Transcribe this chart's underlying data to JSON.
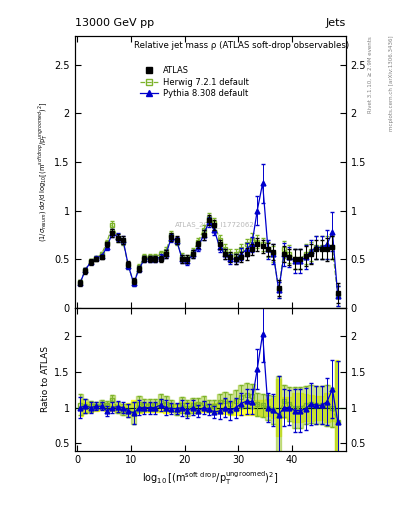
{
  "title": "13000 GeV pp",
  "title_right": "Jets",
  "plot_title": "Relative jet mass ρ (ATLAS soft-drop observables)",
  "ylabel_main": "(1/σ$_{resum}$) dσ/d log$_{10}$[(m$^{soft drop}$/p$_T^{ungroomed}$)$^2$]",
  "ylabel_ratio": "Ratio to ATLAS",
  "right_label": "Rivet 3.1.10, ≥ 2.9M events",
  "right_label2": "mcplots.cern.ch [arXiv:1306.3436]",
  "watermark": "ATLAS_2019_I1772062",
  "atlas_color": "#000000",
  "herwig_color": "#7db32b",
  "pythia_color": "#0000cc",
  "xlim": [
    -0.5,
    50
  ],
  "ylim_main": [
    0,
    2.8
  ],
  "ylim_ratio": [
    0.4,
    2.4
  ],
  "xdata": [
    0.5,
    1.5,
    2.5,
    3.5,
    4.5,
    5.5,
    6.5,
    7.5,
    8.5,
    9.5,
    10.5,
    11.5,
    12.5,
    13.5,
    14.5,
    15.5,
    16.5,
    17.5,
    18.5,
    19.5,
    20.5,
    21.5,
    22.5,
    23.5,
    24.5,
    25.5,
    26.5,
    27.5,
    28.5,
    29.5,
    30.5,
    31.5,
    32.5,
    33.5,
    34.5,
    35.5,
    36.5,
    37.5,
    38.5,
    39.5,
    40.5,
    41.5,
    42.5,
    43.5,
    44.5,
    45.5,
    46.5,
    47.5,
    48.5
  ],
  "atlas_y": [
    0.25,
    0.38,
    0.47,
    0.5,
    0.52,
    0.65,
    0.77,
    0.72,
    0.7,
    0.45,
    0.27,
    0.4,
    0.5,
    0.5,
    0.5,
    0.5,
    0.55,
    0.73,
    0.7,
    0.5,
    0.5,
    0.55,
    0.65,
    0.75,
    0.9,
    0.85,
    0.65,
    0.55,
    0.52,
    0.5,
    0.52,
    0.55,
    0.6,
    0.65,
    0.63,
    0.6,
    0.57,
    0.2,
    0.55,
    0.52,
    0.5,
    0.5,
    0.53,
    0.55,
    0.6,
    0.6,
    0.6,
    0.62,
    0.15
  ],
  "atlas_yerr": [
    0.03,
    0.03,
    0.03,
    0.02,
    0.02,
    0.03,
    0.04,
    0.04,
    0.04,
    0.03,
    0.03,
    0.03,
    0.03,
    0.03,
    0.03,
    0.03,
    0.04,
    0.04,
    0.04,
    0.04,
    0.04,
    0.04,
    0.04,
    0.05,
    0.05,
    0.05,
    0.05,
    0.05,
    0.05,
    0.05,
    0.05,
    0.06,
    0.06,
    0.07,
    0.07,
    0.07,
    0.08,
    0.08,
    0.08,
    0.08,
    0.1,
    0.1,
    0.1,
    0.1,
    0.1,
    0.1,
    0.12,
    0.12,
    0.1
  ],
  "herwig_y": [
    0.26,
    0.39,
    0.48,
    0.51,
    0.55,
    0.67,
    0.85,
    0.72,
    0.68,
    0.43,
    0.25,
    0.42,
    0.52,
    0.52,
    0.52,
    0.55,
    0.58,
    0.75,
    0.68,
    0.52,
    0.5,
    0.57,
    0.68,
    0.8,
    0.92,
    0.87,
    0.7,
    0.6,
    0.55,
    0.55,
    0.6,
    0.65,
    0.7,
    0.68,
    0.65,
    0.6,
    0.55,
    0.18,
    0.6,
    0.55,
    0.5,
    0.5,
    0.55,
    0.58,
    0.62,
    0.62,
    0.62,
    0.62,
    0.12
  ],
  "herwig_yerr": [
    0.02,
    0.02,
    0.02,
    0.02,
    0.02,
    0.03,
    0.04,
    0.04,
    0.04,
    0.03,
    0.03,
    0.03,
    0.03,
    0.03,
    0.03,
    0.03,
    0.04,
    0.04,
    0.04,
    0.04,
    0.04,
    0.04,
    0.04,
    0.05,
    0.05,
    0.05,
    0.05,
    0.05,
    0.05,
    0.05,
    0.06,
    0.06,
    0.07,
    0.07,
    0.07,
    0.08,
    0.08,
    0.08,
    0.09,
    0.09,
    0.1,
    0.1,
    0.1,
    0.1,
    0.12,
    0.12,
    0.12,
    0.12,
    0.1
  ],
  "pythia_y": [
    0.25,
    0.39,
    0.47,
    0.51,
    0.53,
    0.62,
    0.77,
    0.73,
    0.7,
    0.43,
    0.25,
    0.4,
    0.5,
    0.5,
    0.5,
    0.52,
    0.55,
    0.72,
    0.69,
    0.5,
    0.48,
    0.55,
    0.62,
    0.75,
    0.88,
    0.8,
    0.62,
    0.55,
    0.5,
    0.5,
    0.55,
    0.6,
    0.65,
    1.0,
    1.28,
    0.6,
    0.55,
    0.18,
    0.55,
    0.52,
    0.48,
    0.48,
    0.52,
    0.58,
    0.62,
    0.62,
    0.65,
    0.78,
    0.12
  ],
  "pythia_yerr": [
    0.02,
    0.02,
    0.02,
    0.02,
    0.02,
    0.03,
    0.04,
    0.04,
    0.04,
    0.03,
    0.03,
    0.03,
    0.03,
    0.03,
    0.03,
    0.03,
    0.04,
    0.04,
    0.04,
    0.04,
    0.04,
    0.04,
    0.04,
    0.05,
    0.05,
    0.05,
    0.05,
    0.05,
    0.05,
    0.05,
    0.06,
    0.07,
    0.08,
    0.15,
    0.2,
    0.1,
    0.1,
    0.08,
    0.12,
    0.1,
    0.12,
    0.12,
    0.12,
    0.12,
    0.12,
    0.12,
    0.15,
    0.2,
    0.1
  ]
}
